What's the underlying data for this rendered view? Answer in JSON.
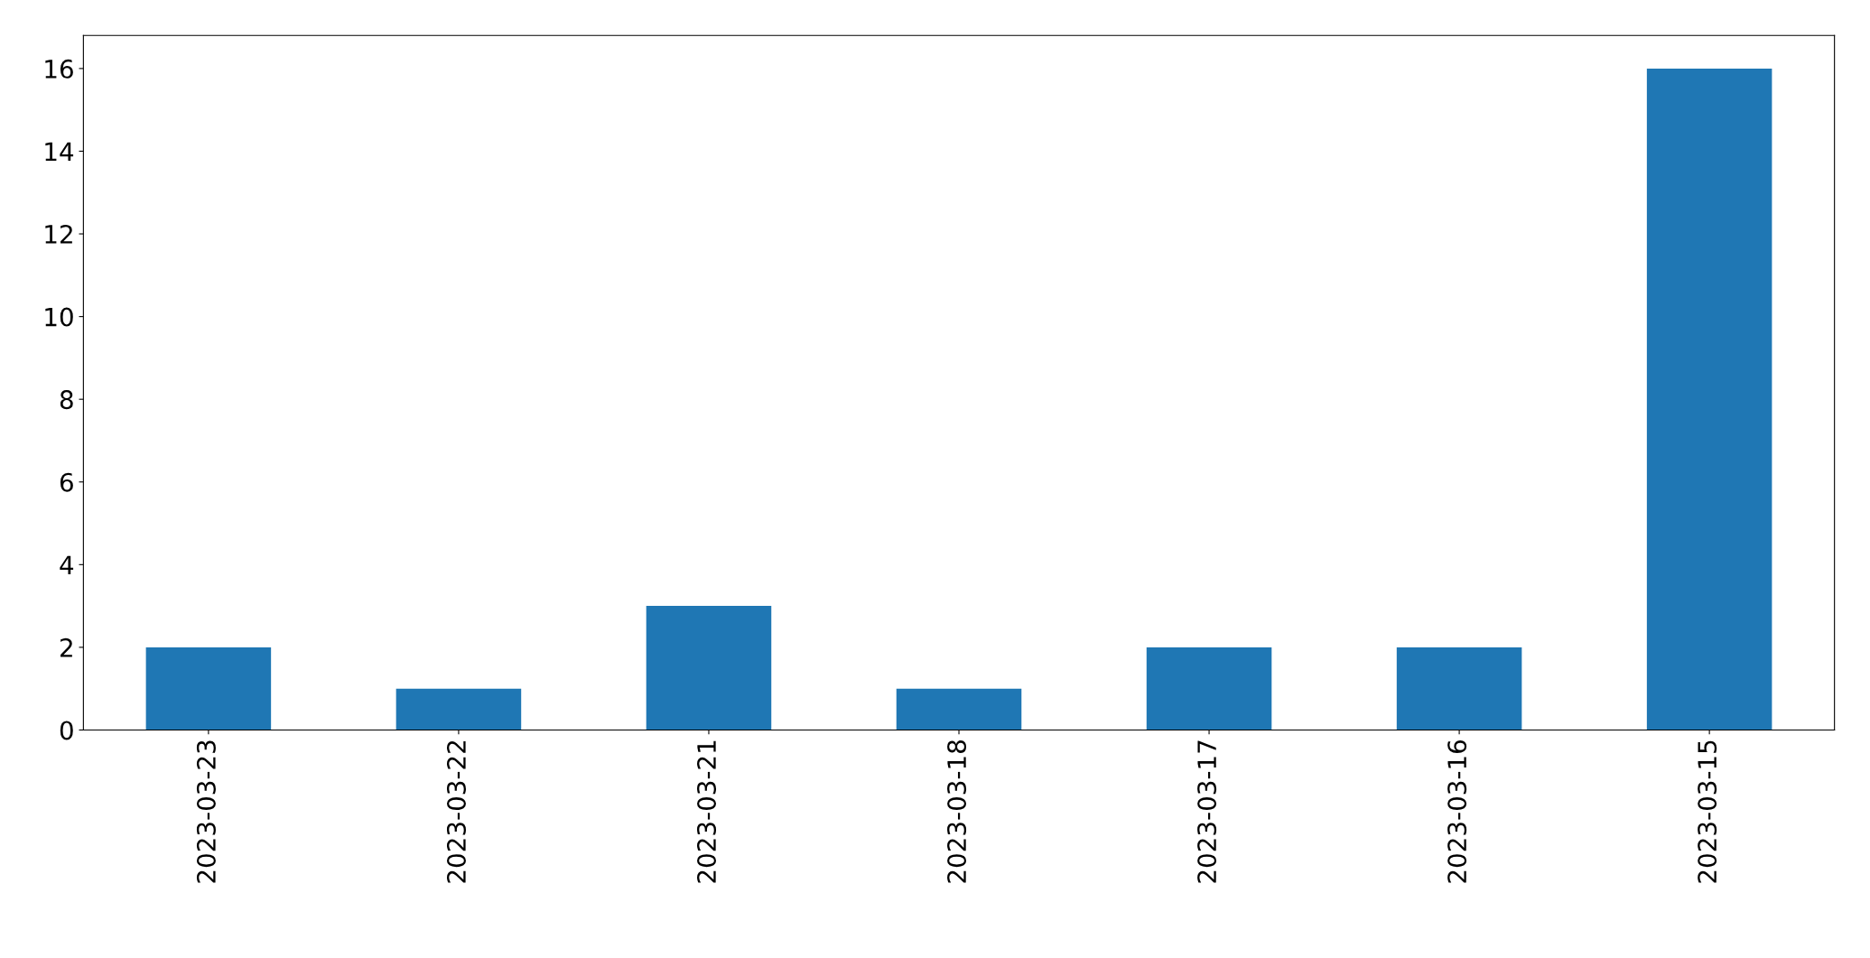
{
  "chart_data": {
    "type": "bar",
    "categories": [
      "2023-03-23",
      "2023-03-22",
      "2023-03-21",
      "2023-03-18",
      "2023-03-17",
      "2023-03-16",
      "2023-03-15"
    ],
    "values": [
      2,
      1,
      3,
      1,
      2,
      2,
      16
    ],
    "color": "#1f77b4",
    "ylim": [
      0,
      16.8
    ],
    "yticks": [
      0,
      2,
      4,
      6,
      8,
      10,
      12,
      14,
      16
    ],
    "grid": false,
    "legend": false
  }
}
